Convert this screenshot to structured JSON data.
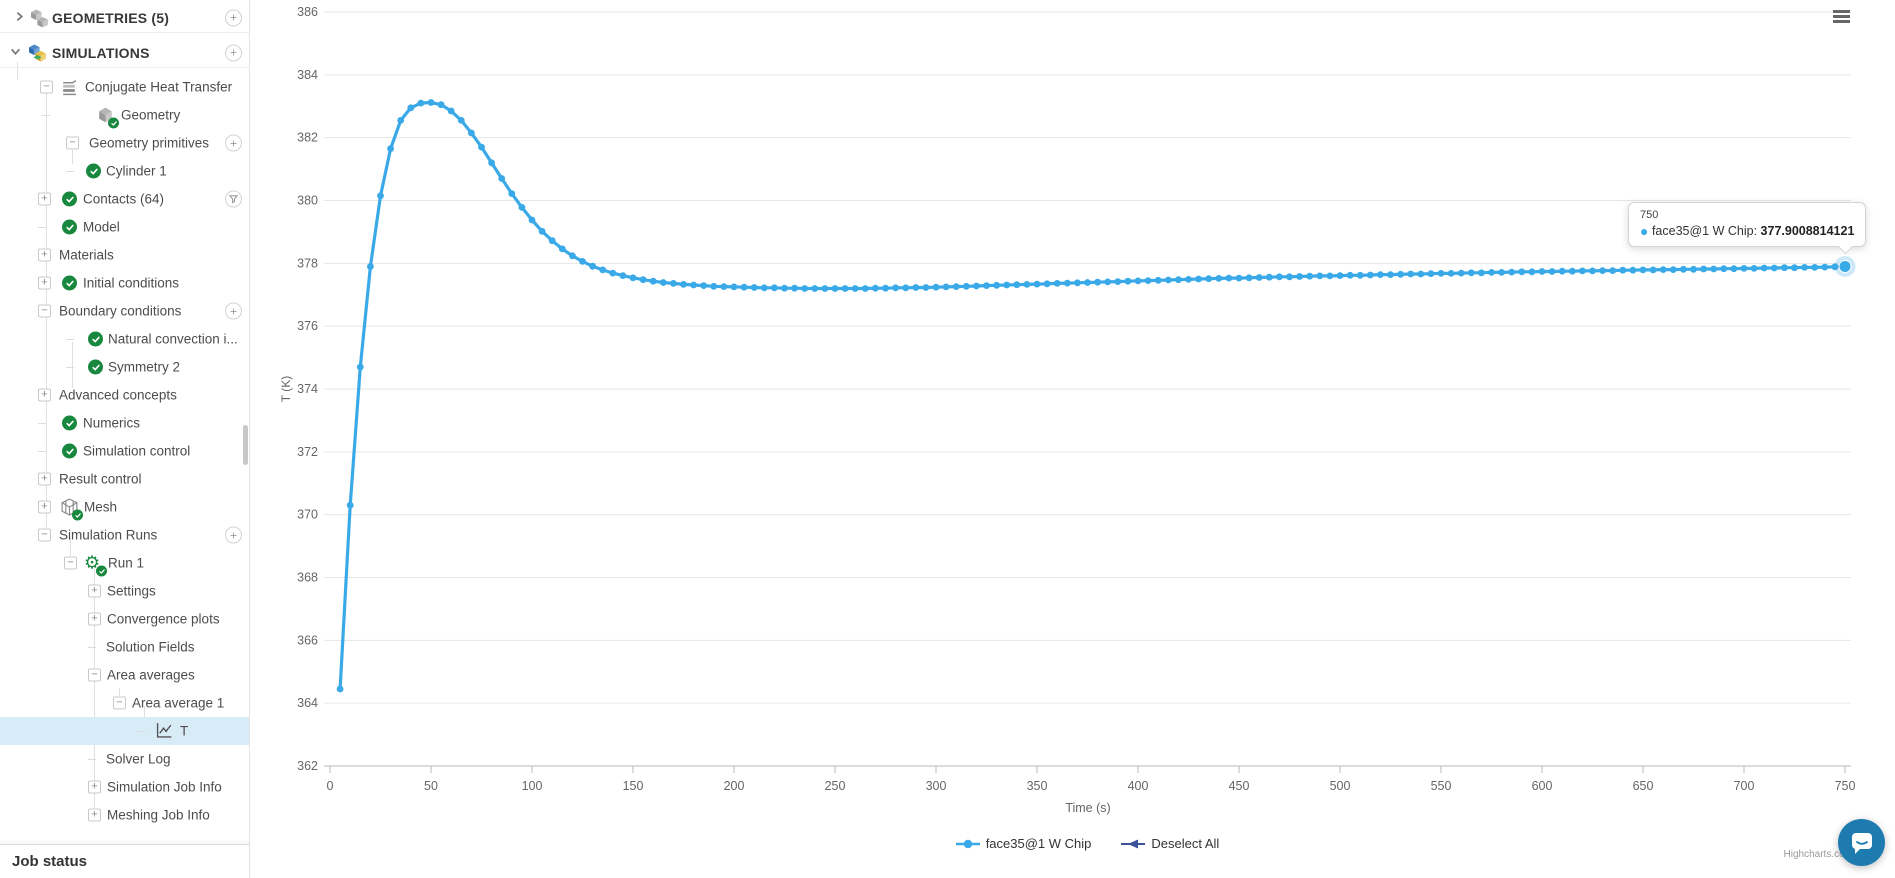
{
  "sidebar": {
    "job_status_label": "Job status",
    "items": [
      {
        "name": "geometries-section",
        "label": "GEOMETRIES (5)",
        "header": true,
        "expander": "chevron-right",
        "icon": "cube-cluster-gray",
        "right": "plus"
      },
      {
        "name": "simulations-section",
        "label": "SIMULATIONS",
        "header": true,
        "expander": "chevron-down",
        "icon": "cube-cluster-color",
        "right": "plus"
      },
      {
        "name": "conjugate-heat-transfer",
        "label": "Conjugate Heat Transfer",
        "expander": "minus",
        "icon": "cht"
      },
      {
        "name": "geometry",
        "label": "Geometry",
        "expander": "dash",
        "icon": "cube-gray",
        "icon_check": true
      },
      {
        "name": "geometry-primitives",
        "label": "Geometry primitives",
        "expander": "minus",
        "right": "plus"
      },
      {
        "name": "cylinder-1",
        "label": "Cylinder 1",
        "expander": "dash",
        "check": true
      },
      {
        "name": "contacts",
        "label": "Contacts (64)",
        "expander": "plus",
        "check": true,
        "right": "filter"
      },
      {
        "name": "model",
        "label": "Model",
        "expander": "dash",
        "check": true
      },
      {
        "name": "materials",
        "label": "Materials",
        "expander": "plus"
      },
      {
        "name": "initial-conditions",
        "label": "Initial conditions",
        "expander": "plus",
        "check": true
      },
      {
        "name": "boundary-conditions",
        "label": "Boundary conditions",
        "expander": "minus",
        "right": "plus"
      },
      {
        "name": "natural-convection",
        "label": "Natural convection i...",
        "expander": "dash",
        "check": true
      },
      {
        "name": "symmetry-2",
        "label": "Symmetry 2",
        "expander": "dash",
        "check": true
      },
      {
        "name": "advanced-concepts",
        "label": "Advanced concepts",
        "expander": "plus"
      },
      {
        "name": "numerics",
        "label": "Numerics",
        "expander": "dash",
        "check": true
      },
      {
        "name": "simulation-control",
        "label": "Simulation control",
        "expander": "dash",
        "check": true
      },
      {
        "name": "result-control",
        "label": "Result control",
        "expander": "plus"
      },
      {
        "name": "mesh",
        "label": "Mesh",
        "expander": "plus",
        "icon": "mesh",
        "icon_check": true
      },
      {
        "name": "simulation-runs",
        "label": "Simulation Runs",
        "expander": "minus",
        "right": "plus"
      },
      {
        "name": "run-1",
        "label": "Run 1",
        "expander": "minus",
        "icon": "gear",
        "icon_check": true
      },
      {
        "name": "settings",
        "label": "Settings",
        "expander": "plus"
      },
      {
        "name": "convergence-plots",
        "label": "Convergence plots",
        "expander": "plus"
      },
      {
        "name": "solution-fields",
        "label": "Solution Fields",
        "expander": "dash"
      },
      {
        "name": "area-averages",
        "label": "Area averages",
        "expander": "minus"
      },
      {
        "name": "area-average-1",
        "label": "Area average 1",
        "expander": "minus"
      },
      {
        "name": "area-average-t",
        "label": "T",
        "expander": "dash",
        "icon": "chart",
        "selected": true
      },
      {
        "name": "solver-log",
        "label": "Solver Log",
        "expander": "dash"
      },
      {
        "name": "simulation-job-info",
        "label": "Simulation Job Info",
        "expander": "plus"
      },
      {
        "name": "meshing-job-info",
        "label": "Meshing Job Info",
        "expander": "plus"
      }
    ]
  },
  "chart": {
    "credits": "Highcharts.com",
    "menu_icon": "hamburger-icon"
  },
  "tooltip": {
    "x_label": "750",
    "series_label": "face35@1 W Chip:",
    "value": "377.9008814121"
  },
  "legend": [
    {
      "label": "face35@1 W Chip",
      "color": "#39a9e8",
      "marker": "line-dot"
    },
    {
      "label": "Deselect All",
      "color": "#3a539b",
      "marker": "line-arrow"
    }
  ],
  "chart_data": {
    "type": "line",
    "title": "",
    "xlabel": "Time (s)",
    "ylabel": "T (K)",
    "xlim": [
      0,
      750
    ],
    "ylim": [
      362,
      386
    ],
    "x_tick_step": 50,
    "y_tick_step": 2,
    "grid": "horizontal",
    "legend_position": "bottom-center",
    "series": [
      {
        "name": "face35@1 W Chip",
        "color": "#39a9e8",
        "t_start": 5,
        "t_step": 5,
        "values": [
          364.45,
          370.3,
          374.7,
          377.9,
          380.15,
          381.65,
          382.55,
          382.95,
          383.1,
          383.12,
          383.05,
          382.85,
          382.55,
          382.15,
          381.7,
          381.2,
          380.7,
          380.22,
          379.78,
          379.38,
          379.02,
          378.72,
          378.46,
          378.24,
          378.06,
          377.91,
          377.79,
          377.69,
          377.61,
          377.54,
          377.48,
          377.43,
          377.39,
          377.36,
          377.33,
          377.31,
          377.29,
          377.27,
          377.26,
          377.25,
          377.24,
          377.23,
          377.22,
          377.22,
          377.21,
          377.21,
          377.2,
          377.2,
          377.2,
          377.2,
          377.2,
          377.2,
          377.2,
          377.21,
          377.21,
          377.22,
          377.22,
          377.23,
          377.23,
          377.24,
          377.25,
          377.26,
          377.27,
          377.28,
          377.29,
          377.3,
          377.31,
          377.32,
          377.33,
          377.34,
          377.35,
          377.36,
          377.37,
          377.38,
          377.39,
          377.4,
          377.41,
          377.42,
          377.43,
          377.44,
          377.45,
          377.46,
          377.47,
          377.48,
          377.49,
          377.5,
          377.51,
          377.52,
          377.53,
          377.53,
          377.54,
          377.55,
          377.56,
          377.57,
          377.57,
          377.58,
          377.59,
          377.6,
          377.6,
          377.61,
          377.62,
          377.62,
          377.63,
          377.64,
          377.64,
          377.65,
          377.66,
          377.66,
          377.67,
          377.68,
          377.68,
          377.69,
          377.7,
          377.7,
          377.71,
          377.71,
          377.72,
          377.73,
          377.73,
          377.74,
          377.74,
          377.75,
          377.75,
          377.76,
          377.76,
          377.77,
          377.77,
          377.78,
          377.78,
          377.79,
          377.79,
          377.8,
          377.8,
          377.81,
          377.81,
          377.82,
          377.82,
          377.83,
          377.83,
          377.84,
          377.84,
          377.85,
          377.85,
          377.86,
          377.86,
          377.87,
          377.87,
          377.88,
          377.89,
          377.9008814121
        ],
        "highlight_last_point": true
      }
    ]
  }
}
